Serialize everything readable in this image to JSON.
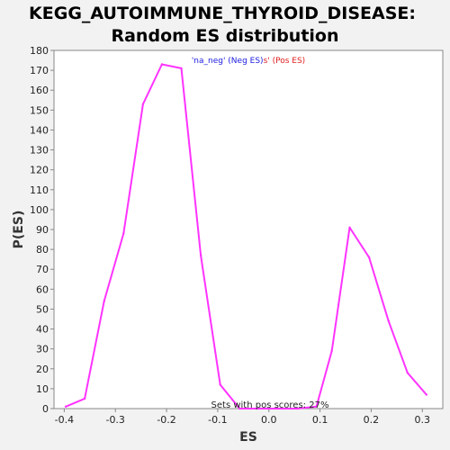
{
  "chart_data": {
    "type": "line",
    "title_line1": "KEGG_AUTOIMMUNE_THYROID_DISEASE:",
    "title_line2": "Random ES distribution",
    "xlabel": "ES",
    "ylabel": "P(ES)",
    "xlim": [
      -0.42,
      0.34
    ],
    "ylim": [
      0,
      180
    ],
    "x_ticks": [
      "-0.4",
      "-0.3",
      "-0.2",
      "-0.1",
      "0.0",
      "0.1",
      "0.2",
      "0.3"
    ],
    "x_tick_values": [
      -0.4,
      -0.3,
      -0.2,
      -0.1,
      0.0,
      0.1,
      0.2,
      0.3
    ],
    "y_ticks": [
      "0",
      "10",
      "20",
      "30",
      "40",
      "50",
      "60",
      "70",
      "80",
      "90",
      "100",
      "110",
      "120",
      "130",
      "140",
      "150",
      "160",
      "170",
      "180"
    ],
    "y_tick_values": [
      0,
      10,
      20,
      30,
      40,
      50,
      60,
      70,
      80,
      90,
      100,
      110,
      120,
      130,
      140,
      150,
      160,
      170,
      180
    ],
    "legend": {
      "neg_label": "'na_neg' (Neg ES)",
      "pos_label": "s' (Pos ES)",
      "neg_color": "#2020e0",
      "pos_color": "#e02020",
      "placement": "top-center"
    },
    "annotation": "Sets with pos scores: 27%",
    "grid": false,
    "series": [
      {
        "color": "#ff33ff",
        "x": [
          -0.397,
          -0.36,
          -0.322,
          -0.284,
          -0.246,
          -0.209,
          -0.171,
          -0.133,
          -0.095,
          -0.057,
          -0.02,
          0.018,
          0.056,
          0.093,
          0.123,
          0.158,
          0.196,
          0.234,
          0.271,
          0.308
        ],
        "y": [
          1,
          5,
          54,
          88,
          153,
          173,
          171,
          77,
          12,
          0,
          0,
          0,
          0,
          1,
          29,
          91,
          76,
          44,
          18,
          7
        ]
      }
    ]
  }
}
